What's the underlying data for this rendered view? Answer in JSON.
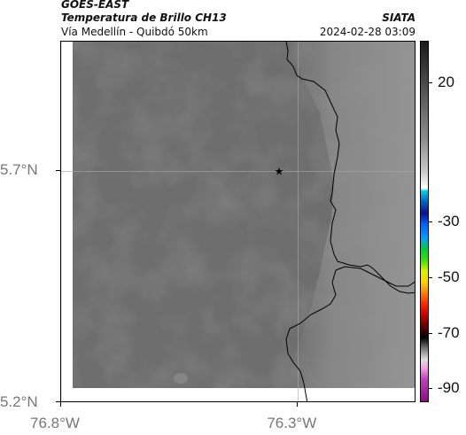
{
  "header": {
    "satellite": "GOES-EAST",
    "product": "Temperatura de Brillo CH13",
    "region": "Vía Medellín - Quibdó 50km",
    "source": "SIATA",
    "datetime": "2024-02-28 03:09"
  },
  "map": {
    "lon_range": [
      -76.8,
      -76.05
    ],
    "lat_range": [
      5.2,
      5.98
    ],
    "marker": {
      "symbol": "★",
      "lon": -76.34,
      "lat": 5.7
    },
    "lon_ticks": [
      {
        "value": -76.8,
        "label": "76.8°W"
      },
      {
        "value": -76.3,
        "label": "76.3°W"
      }
    ],
    "lat_ticks": [
      {
        "value": 5.7,
        "label": "5.7°N"
      },
      {
        "value": 5.2,
        "label": "5.2°N"
      }
    ],
    "colors": {
      "base_gray": "#6e6e6e",
      "light_gray": "#8c8c8c",
      "border_line": "#000000",
      "gridline": "#a8a8a8"
    }
  },
  "colorbar": {
    "range": [
      -95,
      35
    ],
    "ticks": [
      {
        "value": 20,
        "label": "20"
      },
      {
        "value": -30,
        "label": "-30"
      },
      {
        "value": -50,
        "label": "-50"
      },
      {
        "value": -70,
        "label": "-70"
      },
      {
        "value": -90,
        "label": "-90"
      }
    ]
  }
}
